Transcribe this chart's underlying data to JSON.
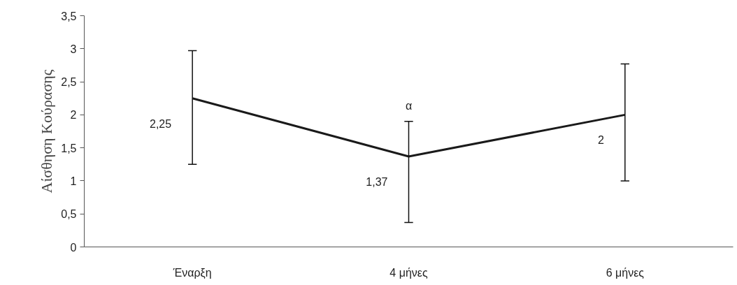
{
  "chart_data": {
    "type": "line",
    "ylabel": "Αίσθηση Κούρασης",
    "categories": [
      "Έναρξη",
      "4 μήνες",
      "6 μήνες"
    ],
    "series": [
      {
        "color": "#1a1a1a",
        "values": [
          2.25,
          1.37,
          2
        ],
        "errors": [
          [
            1.25,
            2.97
          ],
          [
            0.37,
            1.9
          ],
          [
            1.0,
            2.77
          ]
        ],
        "value_labels": [
          "2,25",
          "1,37",
          "2"
        ]
      }
    ],
    "annotations": [
      "α"
    ],
    "ylim": [
      0,
      3.5
    ],
    "yticks": [
      {
        "value": 0,
        "label": "0"
      },
      {
        "value": 0.5,
        "label": "0,5"
      },
      {
        "value": 1,
        "label": "1"
      },
      {
        "value": 1.5,
        "label": "1,5"
      },
      {
        "value": 2,
        "label": "2"
      },
      {
        "value": 2.5,
        "label": "2,5"
      },
      {
        "value": 3,
        "label": "3"
      },
      {
        "value": 3.5,
        "label": "3,5"
      }
    ],
    "grid": false,
    "marker": "none",
    "line_style": "solid"
  }
}
